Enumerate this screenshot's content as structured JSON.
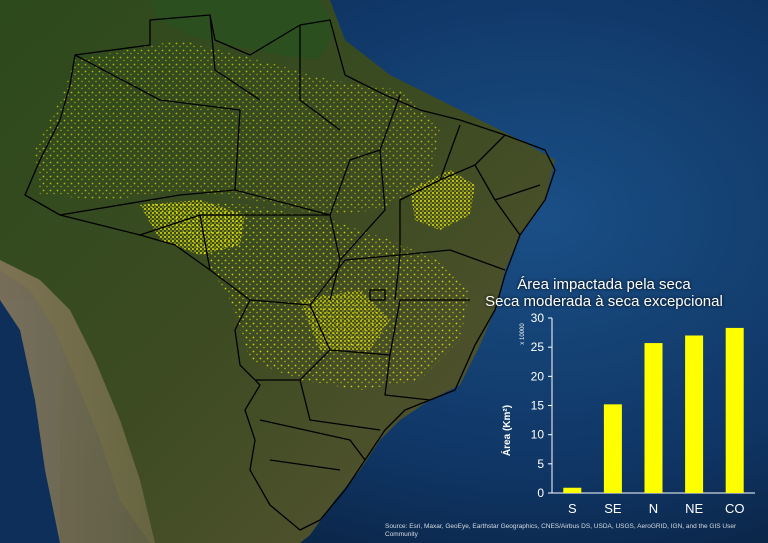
{
  "chart_data": {
    "type": "bar",
    "title": "Área impactada pela seca",
    "subtitle": "Seca moderada à seca excepcional",
    "categories": [
      "S",
      "SE",
      "N",
      "NE",
      "CO"
    ],
    "values": [
      0.9,
      15.2,
      25.7,
      27.0,
      28.3
    ],
    "ylabel": "Área (Km²)",
    "y_scale_label": "x 10000",
    "ylim": [
      0,
      30
    ],
    "yticks": [
      0,
      5,
      10,
      15,
      20,
      25,
      30
    ],
    "bar_color": "#ffff00",
    "text_color": "#ffffff",
    "grid": false
  },
  "map": {
    "attribution": "Source: Esri, Maxar, GeoEye, Earthstar Geographics, CNES/Airbus DS, USDA, USGS, AeroGRID, IGN, and the GIS User Community",
    "ocean_color": "#0e2f57",
    "land_color": "#3e4a24",
    "drought_color": "#e6e600"
  }
}
